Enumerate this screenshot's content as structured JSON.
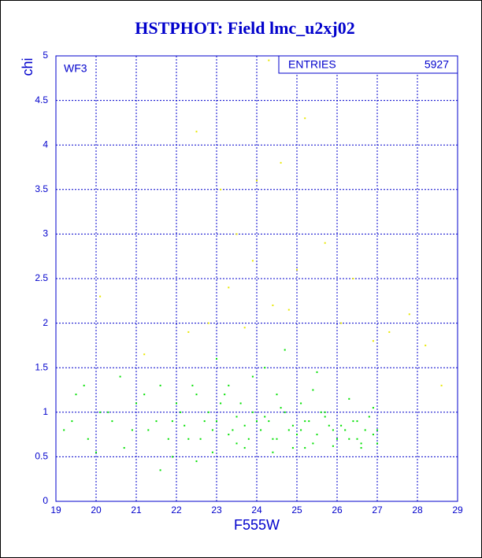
{
  "chart_data": {
    "type": "scatter",
    "title": "HSTPHOT: Field lmc_u2xj02",
    "x_label": "F555W",
    "y_label": "chi",
    "annotation": "WF3",
    "stats": {
      "label": "ENTRIES",
      "value": 5927
    },
    "xlim": [
      19,
      29
    ],
    "xticks": [
      19,
      20,
      21,
      22,
      23,
      24,
      25,
      26,
      27,
      28,
      29
    ],
    "ylim": [
      0,
      5
    ],
    "yticks": [
      0,
      0.5,
      1,
      1.5,
      2,
      2.5,
      3,
      3.5,
      4,
      4.5,
      5
    ],
    "grid": true,
    "series": [
      {
        "name": "chi",
        "color": "#00e000",
        "x": [
          19.2,
          19.5,
          19.8,
          20.1,
          20.4,
          20.7,
          21.0,
          21.3,
          21.6,
          21.9,
          22.1,
          22.3,
          22.5,
          22.7,
          22.9,
          23.1,
          23.3,
          23.5,
          23.7,
          23.9,
          24.1,
          24.3,
          24.5,
          24.7,
          24.9,
          25.1,
          25.3,
          25.5,
          25.7,
          25.9,
          26.1,
          26.3,
          26.5,
          26.7,
          26.9,
          27.0,
          26.8,
          26.6,
          26.4,
          26.2,
          26.0,
          25.8,
          25.6,
          25.4,
          25.2,
          25.0,
          24.8,
          24.6,
          24.4,
          24.2,
          24.0,
          23.8,
          23.6,
          23.4,
          23.2,
          23.0,
          22.8,
          22.6,
          22.4,
          22.2,
          22.0,
          21.8,
          21.5,
          21.2,
          20.9,
          20.6,
          20.3,
          20.0,
          19.7,
          19.4,
          23.3,
          23.9,
          24.5,
          25.1,
          25.7,
          26.3,
          26.9,
          24.2,
          25.4,
          26.6,
          23.7,
          24.9,
          25.9,
          26.5,
          27.0,
          24.4,
          25.2,
          23.5,
          22.9,
          21.9,
          21.6,
          22.5,
          23.0,
          24.7,
          25.5
        ],
        "values": [
          0.8,
          1.2,
          0.7,
          1.0,
          0.9,
          0.6,
          1.1,
          0.8,
          1.3,
          0.9,
          1.0,
          0.7,
          1.2,
          0.9,
          0.8,
          1.1,
          0.75,
          0.95,
          0.85,
          1.0,
          0.8,
          0.9,
          0.7,
          1.0,
          0.85,
          0.8,
          0.9,
          0.75,
          0.95,
          0.8,
          0.85,
          0.7,
          0.9,
          0.8,
          0.75,
          0.8,
          0.95,
          0.65,
          0.9,
          0.8,
          0.7,
          0.85,
          1.0,
          0.65,
          0.9,
          0.75,
          0.8,
          1.05,
          0.7,
          0.95,
          0.9,
          0.7,
          1.1,
          0.8,
          1.2,
          0.9,
          1.0,
          0.7,
          1.3,
          0.85,
          1.1,
          0.7,
          0.9,
          1.2,
          0.8,
          1.4,
          1.0,
          0.55,
          1.3,
          0.9,
          1.3,
          1.4,
          1.2,
          1.1,
          1.0,
          1.15,
          1.05,
          1.5,
          1.25,
          0.6,
          0.6,
          0.6,
          0.62,
          0.7,
          0.65,
          0.55,
          0.6,
          0.65,
          0.55,
          0.5,
          0.35,
          0.45,
          1.6,
          1.7,
          1.45
        ]
      },
      {
        "name": "chi high",
        "color": "#e8e800",
        "x": [
          22.5,
          23.1,
          23.5,
          24.3,
          25.2,
          26.4,
          27.8,
          28.6,
          22.8,
          23.9,
          24.6,
          25.7,
          26.9,
          24.0,
          24.4,
          23.3,
          22.3,
          21.2,
          20.1,
          28.2,
          25.0,
          26.1,
          23.7,
          24.8,
          27.3
        ],
        "values": [
          4.15,
          3.5,
          3.0,
          4.95,
          4.3,
          2.5,
          2.1,
          1.3,
          2.0,
          2.7,
          3.8,
          2.9,
          1.8,
          3.6,
          2.2,
          2.4,
          1.9,
          1.65,
          2.3,
          1.75,
          2.6,
          2.0,
          1.95,
          2.15,
          1.9
        ]
      }
    ]
  }
}
